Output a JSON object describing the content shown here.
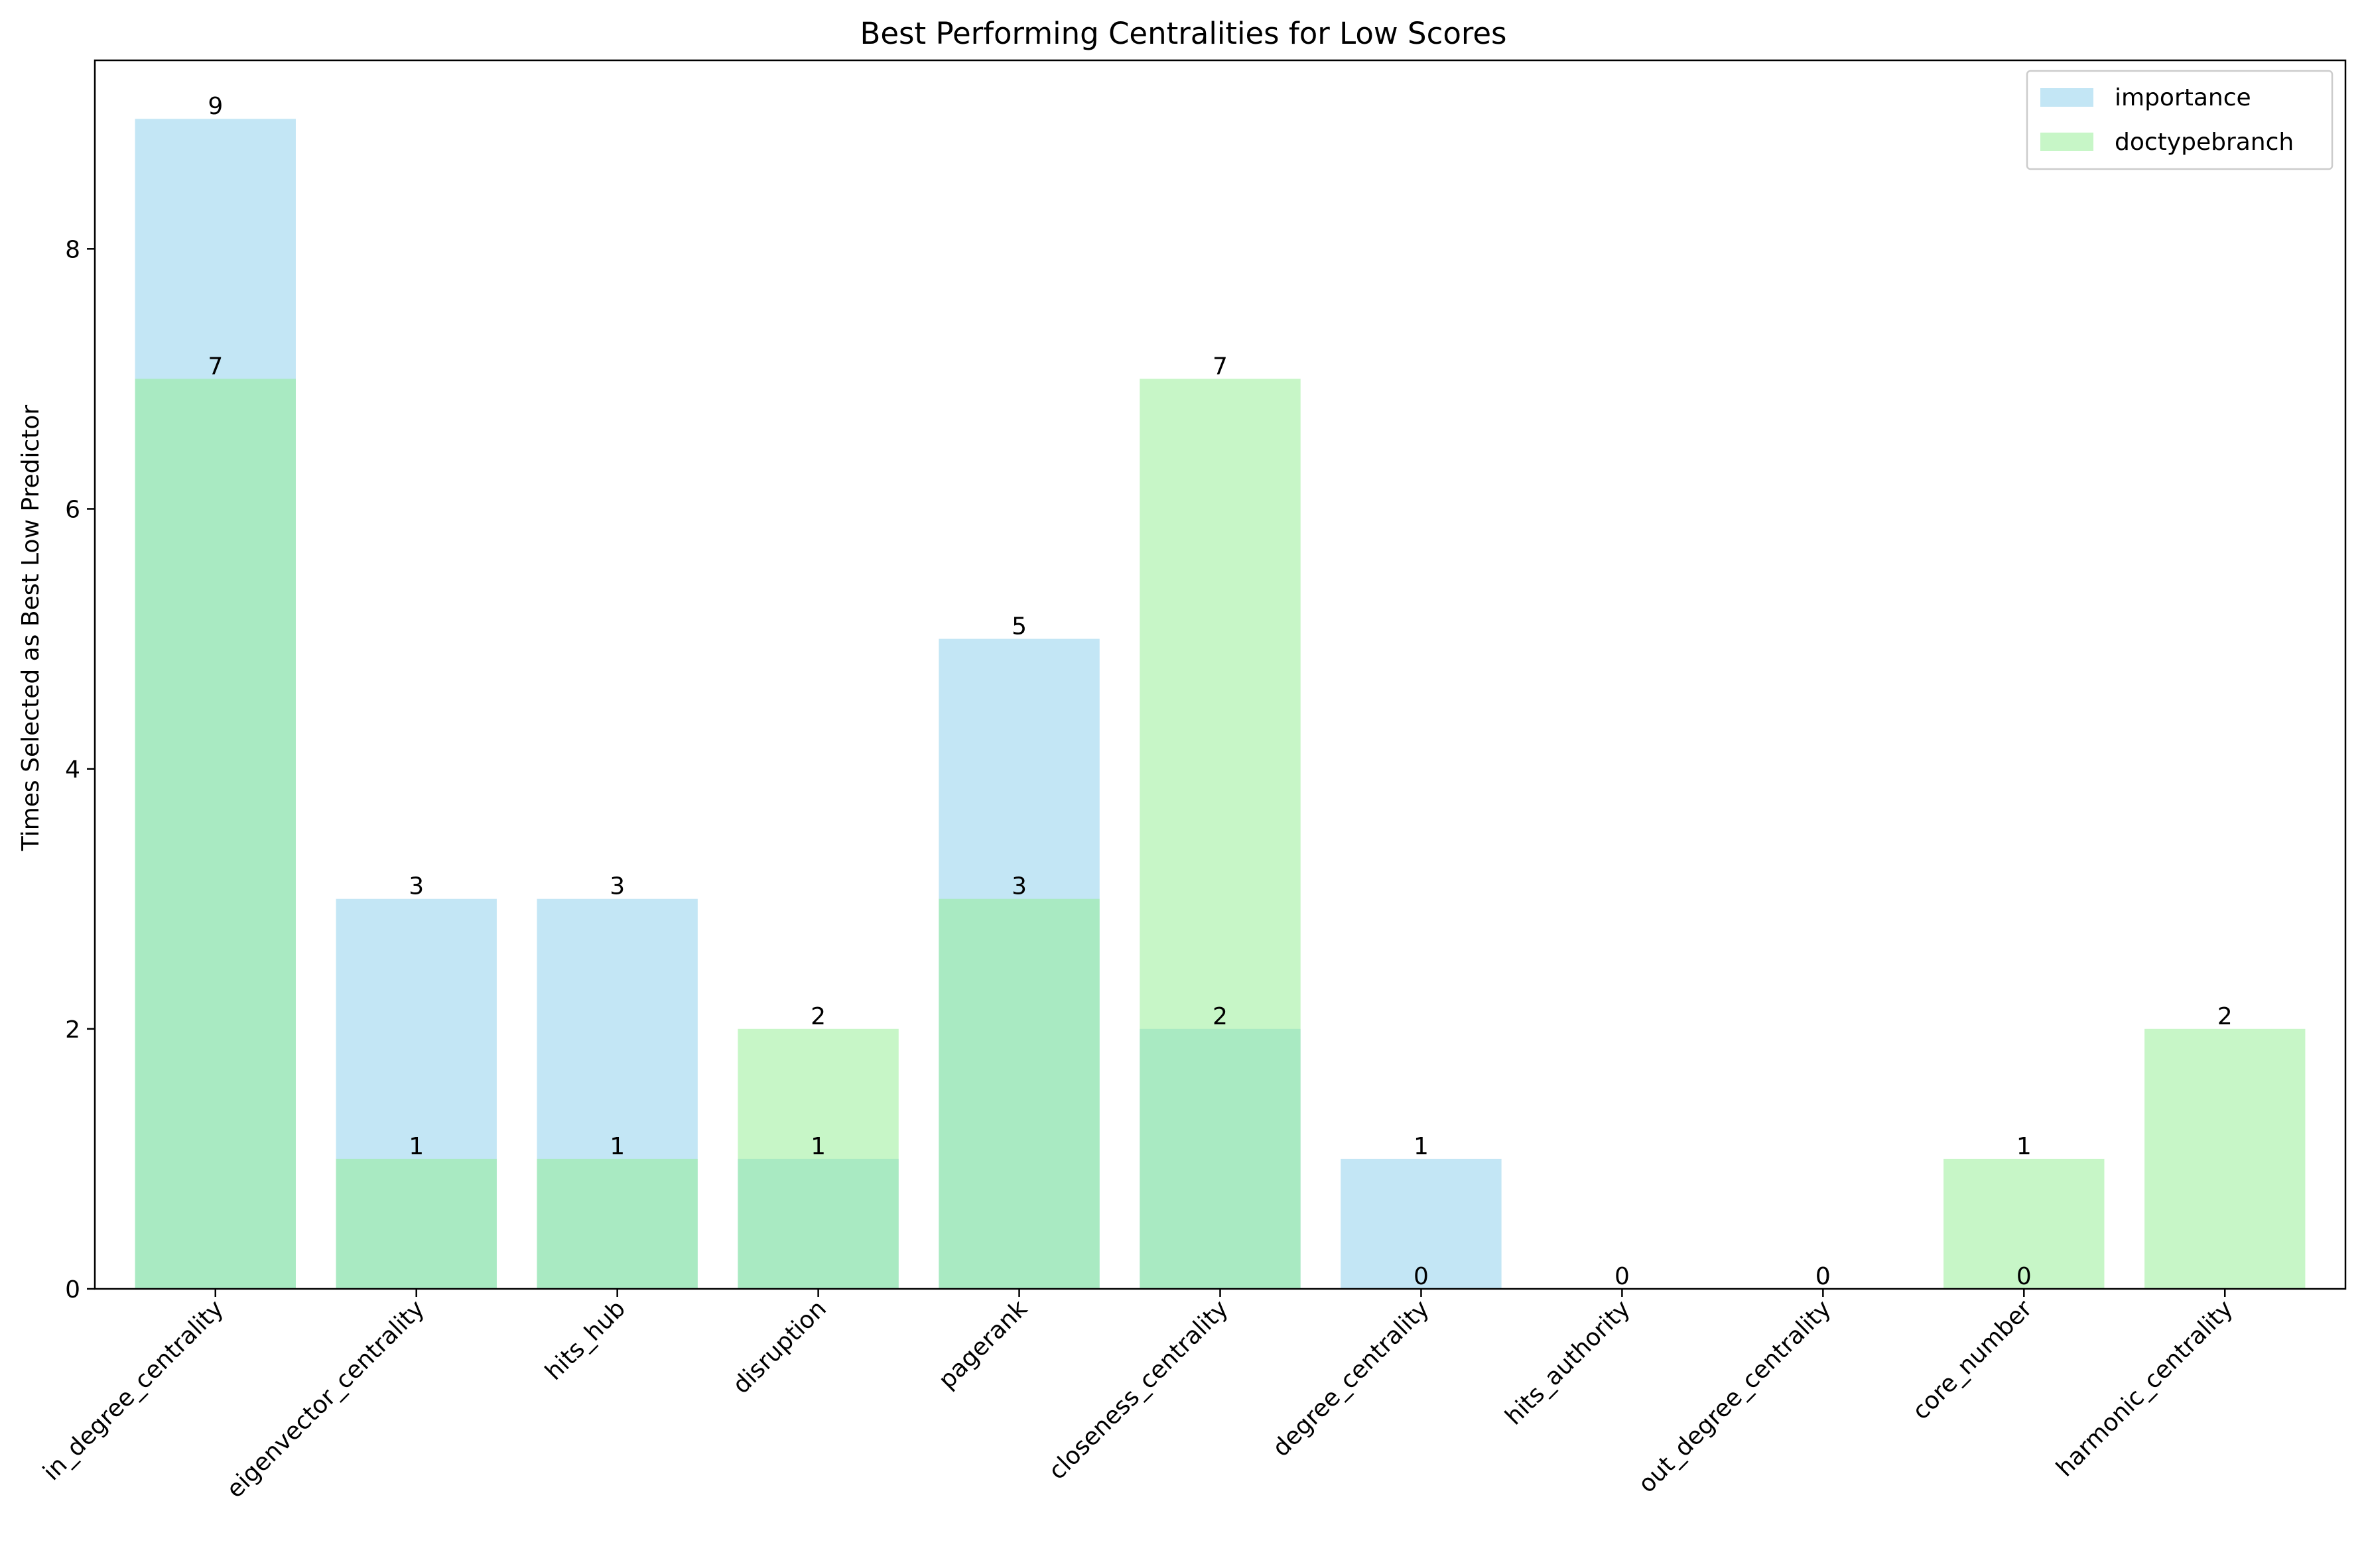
{
  "chart_data": {
    "type": "bar",
    "title": "Best Performing Centralities for Low Scores",
    "xlabel": "",
    "ylabel": "Times Selected as Best Low Predictor",
    "ylim": [
      0,
      9.45
    ],
    "yticks": [
      0,
      2,
      4,
      6,
      8
    ],
    "grid": false,
    "legend_position": "top-right",
    "categories": [
      "in_degree_centrality",
      "eigenvector_centrality",
      "hits_hub",
      "disruption",
      "pagerank",
      "closeness_centrality",
      "degree_centrality",
      "hits_authority",
      "out_degree_centrality",
      "core_number",
      "harmonic_centrality"
    ],
    "series": [
      {
        "name": "importance",
        "color": "#87ceeb",
        "opacity": 0.5,
        "values": [
          9,
          3,
          3,
          1,
          5,
          2,
          1,
          0,
          0,
          0,
          null
        ]
      },
      {
        "name": "doctypebranch",
        "color": "#90ee90",
        "opacity": 0.5,
        "values": [
          7,
          1,
          1,
          2,
          3,
          7,
          0,
          null,
          0,
          1,
          2
        ]
      }
    ]
  }
}
